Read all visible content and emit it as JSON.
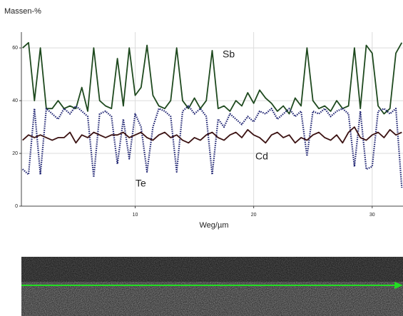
{
  "chart_data": {
    "type": "line",
    "title": "Massen-%",
    "x_label": "Weg/µm",
    "x": [
      0.5,
      1,
      1.5,
      2,
      2.5,
      3,
      3.5,
      4,
      4.5,
      5,
      5.5,
      6,
      6.5,
      7,
      7.5,
      8,
      8.5,
      9,
      9.5,
      10,
      10.5,
      11,
      11.5,
      12,
      12.5,
      13,
      13.5,
      14,
      14.5,
      15,
      15.5,
      16,
      16.5,
      17,
      17.5,
      18,
      18.5,
      19,
      19.5,
      20,
      20.5,
      21,
      21.5,
      22,
      22.5,
      23,
      23.5,
      24,
      24.5,
      25,
      25.5,
      26,
      26.5,
      27,
      27.5,
      28,
      28.5,
      29,
      29.5,
      30,
      30.5,
      31,
      31.5,
      32,
      32.5
    ],
    "series": [
      {
        "name": "Sb",
        "color": "#1f4a1f",
        "dash": "solid",
        "values": [
          60,
          62,
          40,
          60,
          37,
          37,
          40,
          37,
          38,
          37,
          45,
          36,
          60,
          40,
          38,
          37,
          56,
          38,
          60,
          42,
          45,
          61,
          42,
          38,
          37,
          40,
          60,
          40,
          37,
          41,
          37,
          40,
          59,
          37,
          38,
          36,
          40,
          38,
          43,
          39,
          44,
          41,
          39,
          36,
          38,
          35,
          41,
          38,
          60,
          40,
          37,
          38,
          36,
          40,
          37,
          38,
          60,
          37,
          61,
          58,
          38,
          35,
          37,
          58,
          62
        ]
      },
      {
        "name": "Te",
        "color": "#1c2170",
        "dash": "dotted",
        "values": [
          14,
          12,
          37,
          12,
          37,
          35,
          33,
          37,
          35,
          38,
          36,
          34,
          11,
          35,
          36,
          34,
          16,
          33,
          18,
          35,
          30,
          13,
          30,
          37,
          36,
          34,
          13,
          36,
          38,
          35,
          37,
          34,
          12,
          33,
          30,
          35,
          33,
          31,
          34,
          32,
          36,
          35,
          37,
          33,
          35,
          37,
          34,
          36,
          19,
          36,
          35,
          37,
          34,
          36,
          37,
          35,
          15,
          36,
          14,
          15,
          36,
          37,
          35,
          37,
          7
        ]
      },
      {
        "name": "Cd",
        "color": "#3b1212",
        "dash": "solid",
        "values": [
          25,
          27,
          26,
          27,
          26,
          25,
          26,
          26,
          28,
          24,
          27,
          26,
          28,
          27,
          26,
          27,
          27,
          28,
          26,
          27,
          28,
          26,
          25,
          27,
          28,
          26,
          27,
          25,
          24,
          26,
          25,
          27,
          28,
          26,
          25,
          27,
          28,
          26,
          29,
          27,
          26,
          24,
          27,
          28,
          26,
          27,
          24,
          26,
          25,
          27,
          28,
          26,
          25,
          27,
          24,
          28,
          30,
          26,
          25,
          27,
          28,
          26,
          29,
          27,
          28
        ]
      }
    ],
    "xlim": [
      0.4,
      32.6
    ],
    "xticks": [
      10,
      20,
      30
    ],
    "ylim": [
      0,
      66
    ],
    "yticks": [
      0,
      20,
      40,
      60
    ],
    "grid": true
  }
}
